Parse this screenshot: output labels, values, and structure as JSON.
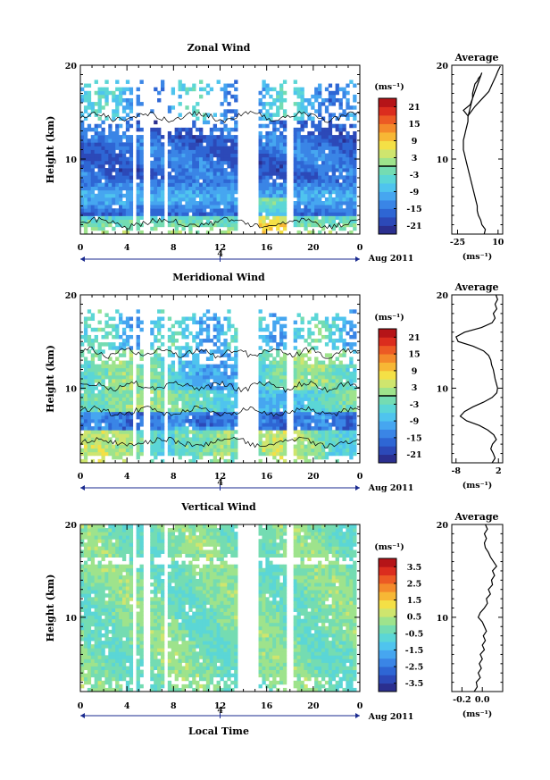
{
  "figure": {
    "date_label": "Aug 2011",
    "xlabel": "Local Time",
    "ylabel": "Height (km)",
    "unit_label": "(ms⁻¹)",
    "avg_title": "Average",
    "avg_unit": "(ms⁻¹)",
    "day_marker": "4"
  },
  "colors": {
    "palette": [
      "#2b2f8f",
      "#2c49b8",
      "#2e66d4",
      "#3a85e6",
      "#46a6f0",
      "#4fc4ee",
      "#5bd6d6",
      "#74dcb2",
      "#9ee38c",
      "#cfe56e",
      "#f4e046",
      "#f7b735",
      "#f48a2b",
      "#ec5a24",
      "#db2d1e",
      "#b51418"
    ]
  },
  "chart_data": [
    {
      "type": "heatmap",
      "title": "Zonal Wind",
      "ylabel": "Height (km)",
      "x_ticks": [
        "0",
        "4",
        "8",
        "12",
        "16",
        "20",
        "0"
      ],
      "xlim": [
        0,
        24
      ],
      "y_ticks": [
        "20",
        "10"
      ],
      "ylim": [
        2,
        20
      ],
      "colorbar": {
        "unit": "(ms⁻¹)",
        "ticks": [
          "21",
          "15",
          "9",
          "3",
          "-3",
          "-9",
          "-15",
          "-21"
        ],
        "range": [
          -24,
          24
        ],
        "zero_line": 3
      },
      "gaps_hours": [
        [
          4.4,
          4.7
        ],
        [
          5.5,
          5.9
        ],
        [
          7.2,
          7.6
        ],
        [
          13.4,
          15.3
        ],
        [
          17.6,
          18.2
        ]
      ],
      "average_profile": {
        "title": "Average",
        "xlabel": "(ms⁻¹)",
        "x_ticks": [
          "-25",
          "10"
        ],
        "xlim": [
          -30,
          14
        ],
        "y_ticks": [
          "20",
          "10"
        ],
        "x": [
          -2,
          -1,
          -4,
          -5,
          -7,
          -8,
          -8,
          -9,
          -10,
          -11,
          -12,
          -13,
          -14,
          -15,
          -16,
          -17,
          -18,
          -19,
          -20,
          -20,
          -20,
          -19,
          -18,
          -17,
          -16,
          -16,
          -15,
          -14,
          -13,
          -12,
          -12,
          -11,
          -10,
          -8,
          -7,
          -5,
          -4,
          -14,
          -20,
          -16,
          -10,
          -4,
          2,
          5,
          8,
          10,
          12
        ],
        "y": [
          2,
          2.5,
          3,
          3.5,
          4,
          4.5,
          5,
          5.5,
          6,
          6.5,
          7,
          7.5,
          8,
          8.5,
          9,
          9.5,
          10,
          10.5,
          11,
          11.5,
          12,
          12.5,
          13,
          13.5,
          14,
          14.5,
          15,
          15.5,
          16,
          16.5,
          17,
          17.5,
          18,
          18.3,
          18.6,
          18.9,
          19.2,
          15.8,
          15.2,
          14.6,
          15.6,
          16.4,
          17.2,
          18,
          18.8,
          19.4,
          19.9
        ]
      }
    },
    {
      "type": "heatmap",
      "title": "Meridional Wind",
      "ylabel": "Height (km)",
      "x_ticks": [
        "0",
        "4",
        "8",
        "12",
        "16",
        "20",
        "0"
      ],
      "xlim": [
        0,
        24
      ],
      "y_ticks": [
        "20",
        "10"
      ],
      "ylim": [
        2,
        20
      ],
      "colorbar": {
        "unit": "(ms⁻¹)",
        "ticks": [
          "21",
          "15",
          "9",
          "3",
          "-3",
          "-9",
          "-15",
          "-21"
        ],
        "range": [
          -24,
          24
        ],
        "zero_line": 3
      },
      "gaps_hours": [
        [
          4.4,
          4.7
        ],
        [
          5.5,
          5.9
        ],
        [
          7.2,
          7.6
        ],
        [
          13.4,
          15.3
        ],
        [
          17.6,
          18.2
        ]
      ],
      "average_profile": {
        "title": "Average",
        "xlabel": "(ms⁻¹)",
        "x_ticks": [
          "-8",
          "2"
        ],
        "xlim": [
          -9,
          3
        ],
        "y_ticks": [
          "20",
          "10"
        ],
        "x": [
          0.5,
          1.2,
          0.8,
          0.2,
          0.6,
          1.5,
          0.9,
          -0.5,
          -2.5,
          -5.5,
          -7,
          -6,
          -4,
          -1.5,
          0.5,
          1.6,
          1.8,
          1.5,
          1.2,
          1.0,
          0.8,
          0.4,
          0.2,
          -0.3,
          -1.5,
          -4,
          -7.5,
          -8,
          -6,
          -2,
          0.5,
          1.2,
          0.8,
          1.6,
          1.2,
          1.8,
          1.4
        ],
        "y": [
          2,
          2.5,
          3,
          3.5,
          4,
          4.5,
          5,
          5.5,
          6,
          6.5,
          7,
          7.5,
          8,
          8.5,
          9,
          9.5,
          10,
          10.5,
          11,
          11.5,
          12,
          12.5,
          13,
          13.5,
          14,
          14.5,
          15,
          15.5,
          16,
          16.5,
          17,
          17.5,
          18,
          18.5,
          19,
          19.5,
          20
        ]
      }
    },
    {
      "type": "heatmap",
      "title": "Vertical Wind",
      "ylabel": "Height (km)",
      "xlabel": "Local Time",
      "x_ticks": [
        "0",
        "4",
        "8",
        "12",
        "16",
        "20",
        "0"
      ],
      "xlim": [
        0,
        24
      ],
      "y_ticks": [
        "20",
        "10"
      ],
      "ylim": [
        2,
        20
      ],
      "colorbar": {
        "unit": "(ms⁻¹)",
        "ticks": [
          "3.5",
          "2.5",
          "1.5",
          "0.5",
          "-0.5",
          "-1.5",
          "-2.5",
          "-3.5"
        ],
        "range": [
          -4,
          4
        ],
        "zero_line": null
      },
      "gaps_hours": [
        [
          4.4,
          4.7
        ],
        [
          5.5,
          5.9
        ],
        [
          7.2,
          7.6
        ],
        [
          13.4,
          15.3
        ],
        [
          17.6,
          18.2
        ]
      ],
      "average_profile": {
        "title": "Average",
        "xlabel": "(ms⁻¹)",
        "x_ticks": [
          "-0.2",
          "0.0"
        ],
        "xlim": [
          -0.3,
          0.2
        ],
        "y_ticks": [
          "20",
          "10"
        ],
        "x": [
          -0.08,
          -0.05,
          -0.06,
          -0.02,
          -0.04,
          -0.01,
          -0.03,
          0.0,
          -0.02,
          0.02,
          0.0,
          0.03,
          0.01,
          0.04,
          0.02,
          0.0,
          -0.04,
          -0.02,
          0.02,
          0.05,
          0.04,
          0.08,
          0.06,
          0.1,
          0.09,
          0.12,
          0.1,
          0.14,
          0.11,
          0.08,
          0.06,
          0.03,
          0.02,
          0.04,
          0.02,
          0.05,
          0.03
        ],
        "y": [
          2,
          2.5,
          3,
          3.5,
          4,
          4.5,
          5,
          5.5,
          6,
          6.5,
          7,
          7.5,
          8,
          8.5,
          9,
          9.5,
          10,
          10.5,
          11,
          11.5,
          12,
          12.5,
          13,
          13.5,
          14,
          14.5,
          15,
          15.5,
          16,
          16.5,
          17,
          17.5,
          18,
          18.5,
          19,
          19.5,
          20
        ]
      }
    }
  ]
}
